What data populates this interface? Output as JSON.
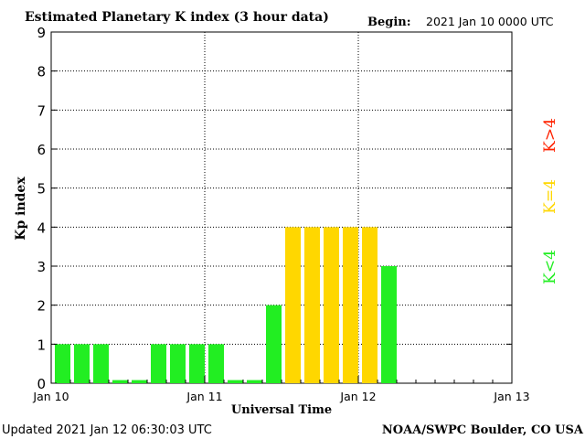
{
  "header": {
    "title": "Estimated Planetary K index (3 hour data)",
    "begin_label": "Begin:",
    "begin_value": "2021 Jan 10 0000 UTC"
  },
  "footer": {
    "updated": "Updated 2021 Jan 12 06:30:03 UTC",
    "source": "NOAA/SWPC Boulder, CO USA"
  },
  "legend": {
    "high": "K>4",
    "equal": "K=4",
    "low": "K<4"
  },
  "colors": {
    "low": "#22ee22",
    "equal": "#ffd700",
    "high": "#ff2200",
    "grid": "#000000"
  },
  "chart_data": {
    "type": "bar",
    "title": "Estimated Planetary K index (3 hour data)",
    "xlabel": "Universal Time",
    "ylabel": "Kp index",
    "ylim": [
      0,
      9
    ],
    "yticks": [
      0,
      1,
      2,
      3,
      4,
      5,
      6,
      7,
      8,
      9
    ],
    "xticks": [
      "Jan 10",
      "Jan 11",
      "Jan 12",
      "Jan 13"
    ],
    "interval_hours": 3,
    "grid": true,
    "categories": [
      "Jan 10 00-03",
      "Jan 10 03-06",
      "Jan 10 06-09",
      "Jan 10 09-12",
      "Jan 10 12-15",
      "Jan 10 15-18",
      "Jan 10 18-21",
      "Jan 10 21-24",
      "Jan 11 00-03",
      "Jan 11 03-06",
      "Jan 11 06-09",
      "Jan 11 09-12",
      "Jan 11 12-15",
      "Jan 11 15-18",
      "Jan 11 18-21",
      "Jan 11 21-24",
      "Jan 12 00-03",
      "Jan 12 03-06"
    ],
    "values": [
      1,
      1,
      1,
      0,
      0,
      1,
      1,
      1,
      1,
      0,
      0,
      2,
      4,
      4,
      4,
      4,
      4,
      3
    ]
  }
}
